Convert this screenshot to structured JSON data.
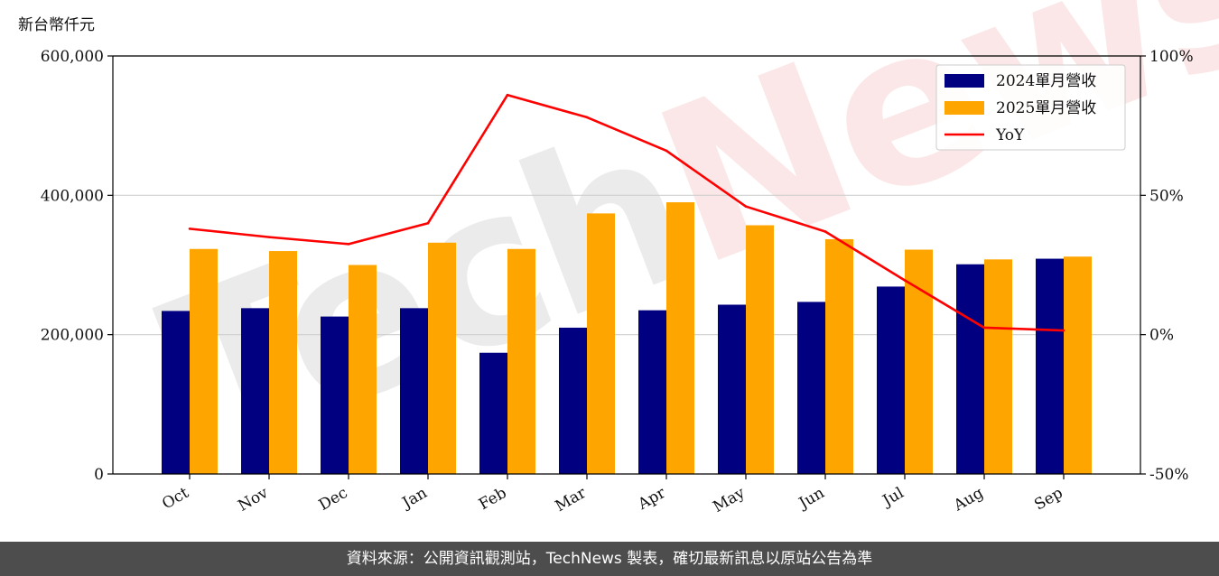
{
  "footer": {
    "text": "資料來源：公開資訊觀測站，TechNews 製表，確切最新訊息以原站公告為準"
  },
  "watermark": {
    "text": "TechNews",
    "colors": [
      "#d9d9d9",
      "#f8d0d0"
    ]
  },
  "colors": {
    "series_2024": "#000080",
    "series_2025": "#ffa500",
    "yoy_line": "#ff0000",
    "grid": "#cfcfcf"
  },
  "chart_data": {
    "type": "bar",
    "categories": [
      "Oct",
      "Nov",
      "Dec",
      "Jan",
      "Feb",
      "Mar",
      "Apr",
      "May",
      "Jun",
      "Jul",
      "Aug",
      "Sep"
    ],
    "y_left_label": "新台幣仟元",
    "y_left_range": [
      0,
      600000
    ],
    "y_left_ticks": [
      "0",
      "200,000",
      "400,000",
      "600,000"
    ],
    "y_left_tick_values": [
      0,
      200000,
      400000,
      600000
    ],
    "y_right_range": [
      -50,
      100
    ],
    "y_right_ticks": [
      "-50%",
      "0%",
      "50%",
      "100%"
    ],
    "y_right_tick_values": [
      -50,
      0,
      50,
      100
    ],
    "grid": "horizontal",
    "legend_position": "top-right",
    "series": [
      {
        "name": "2024單月營收",
        "type": "bar",
        "values": [
          234000,
          238000,
          226000,
          238000,
          174000,
          210000,
          235000,
          243000,
          247000,
          269000,
          301000,
          309000
        ]
      },
      {
        "name": "2025單月營收",
        "type": "bar",
        "values": [
          323000,
          320000,
          300000,
          332000,
          323000,
          374000,
          390000,
          357000,
          337000,
          322000,
          308000,
          312000
        ]
      },
      {
        "name": "YoY",
        "type": "line",
        "axis": "right",
        "values": [
          38,
          35,
          32.5,
          40,
          86,
          78,
          66,
          46,
          37,
          19.5,
          2.5,
          1.5
        ]
      }
    ]
  }
}
